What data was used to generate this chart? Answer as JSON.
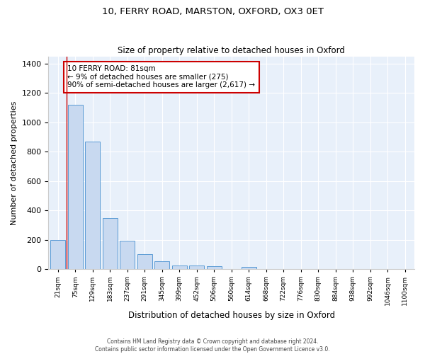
{
  "title": "10, FERRY ROAD, MARSTON, OXFORD, OX3 0ET",
  "subtitle": "Size of property relative to detached houses in Oxford",
  "xlabel": "Distribution of detached houses by size in Oxford",
  "ylabel": "Number of detached properties",
  "bar_color": "#c8d9f0",
  "bar_edge_color": "#5b9bd5",
  "background_color": "#e8f0fa",
  "categories": [
    "21sqm",
    "75sqm",
    "129sqm",
    "183sqm",
    "237sqm",
    "291sqm",
    "345sqm",
    "399sqm",
    "452sqm",
    "506sqm",
    "560sqm",
    "614sqm",
    "668sqm",
    "722sqm",
    "776sqm",
    "830sqm",
    "884sqm",
    "938sqm",
    "992sqm",
    "1046sqm",
    "1100sqm"
  ],
  "values": [
    197,
    1120,
    870,
    350,
    192,
    100,
    52,
    25,
    22,
    18,
    0,
    15,
    0,
    0,
    0,
    0,
    0,
    0,
    0,
    0,
    0
  ],
  "ylim": [
    0,
    1450
  ],
  "yticks": [
    0,
    200,
    400,
    600,
    800,
    1000,
    1200,
    1400
  ],
  "property_line_x": 0.5,
  "annotation_text": "10 FERRY ROAD: 81sqm\n← 9% of detached houses are smaller (275)\n90% of semi-detached houses are larger (2,617) →",
  "annotation_box_color": "#ffffff",
  "annotation_box_edge_color": "#cc0000",
  "footer_line1": "Contains HM Land Registry data © Crown copyright and database right 2024.",
  "footer_line2": "Contains public sector information licensed under the Open Government Licence v3.0."
}
